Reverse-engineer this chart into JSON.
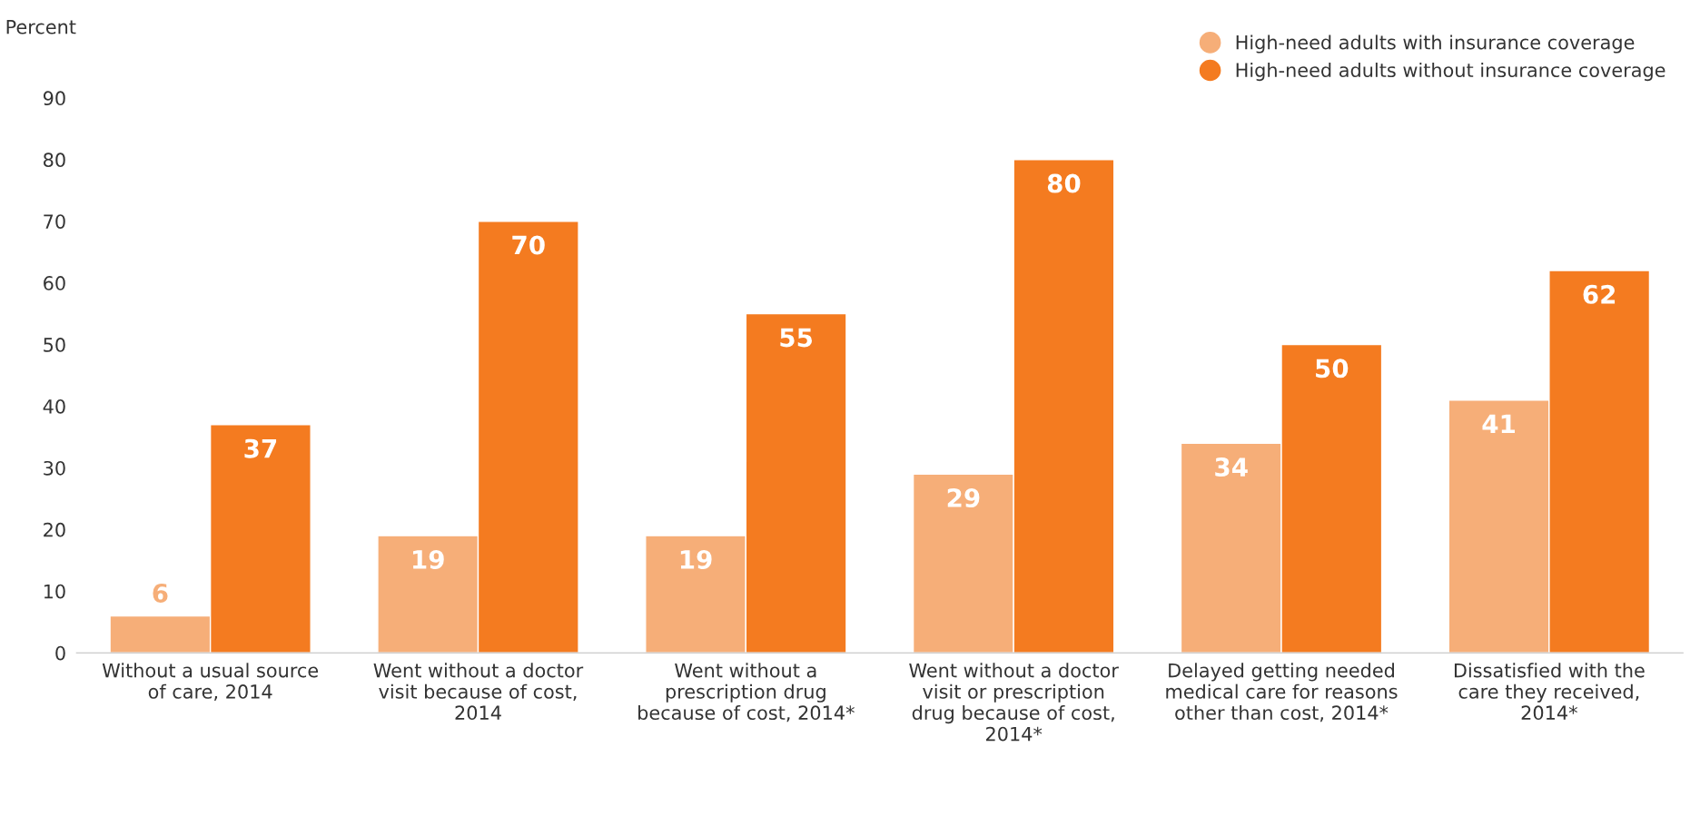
{
  "chart_data": {
    "type": "bar",
    "ylabel": "Percent",
    "categories": [
      "Without a usual source of care, 2014",
      "Went without a doctor visit because of cost, 2014",
      "Went without a prescription drug because of cost, 2014*",
      "Went without a doctor visit or prescription drug because of cost, 2014*",
      "Delayed getting needed medical care for reasons other than cost, 2014*",
      "Dissatisfied with the care they received, 2014*"
    ],
    "series": [
      {
        "name": "High-need adults with insurance coverage",
        "color": "#f6ae78",
        "values": [
          6,
          19,
          19,
          29,
          34,
          41
        ]
      },
      {
        "name": "High-need adults without insurance coverage",
        "color": "#f47b20",
        "values": [
          37,
          70,
          55,
          80,
          50,
          62
        ]
      }
    ],
    "ylim": [
      0,
      90
    ],
    "yticks": [
      0,
      10,
      20,
      30,
      40,
      50,
      60,
      70,
      80,
      90
    ],
    "data_labels": true,
    "grid": false,
    "legend": "top right"
  }
}
